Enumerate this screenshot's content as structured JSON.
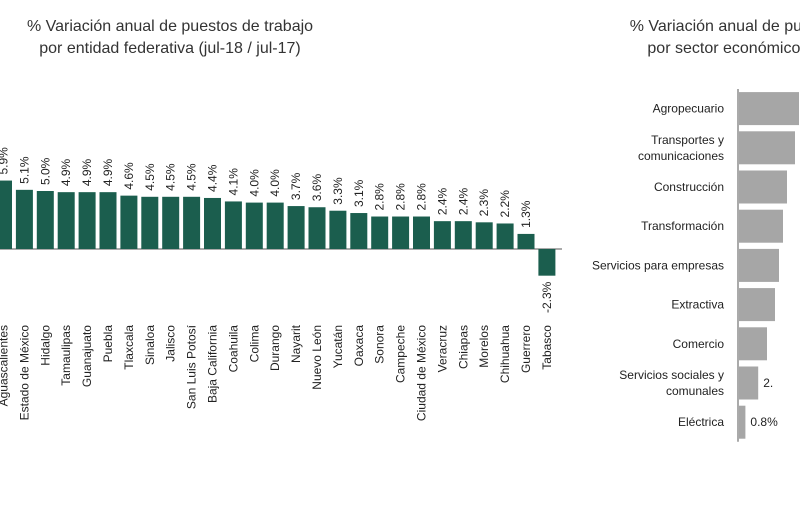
{
  "charts": {
    "left": {
      "title_line1": "% Variación anual de puestos de trabajo",
      "title_line2": "por entidad federativa (jul-18 / jul-17)"
    },
    "right": {
      "title_line1": "% Variación anual de puestos",
      "title_line2": "por sector económico (ju"
    }
  },
  "colors": {
    "state_bars": "#1b5e4e",
    "sector_bars": "#a6a6a6",
    "baseline": "#555555"
  },
  "chart_data": [
    {
      "type": "bar",
      "orientation": "vertical",
      "title": "% Variación anual de puestos de trabajo por entidad federativa (jul-18 / jul-17)",
      "categories": [
        "Aguascalientes",
        "Estado de México",
        "Hidalgo",
        "Tamaulipas",
        "Guanajuato",
        "Puebla",
        "Tlaxcala",
        "Sinaloa",
        "Jalisco",
        "San Luis Potosí",
        "Baja California",
        "Coahuila",
        "Colima",
        "Durango",
        "Nayarit",
        "Nuevo León",
        "Yucatán",
        "Oaxaca",
        "Sonora",
        "Campeche",
        "Ciudad de México",
        "Veracruz",
        "Chiapas",
        "Morelos",
        "Chihuahua",
        "Guerrero",
        "Tabasco"
      ],
      "values": [
        5.9,
        5.1,
        5.0,
        4.9,
        4.9,
        4.9,
        4.6,
        4.5,
        4.5,
        4.5,
        4.4,
        4.1,
        4.0,
        4.0,
        3.7,
        3.6,
        3.3,
        3.1,
        2.8,
        2.8,
        2.8,
        2.4,
        2.4,
        2.3,
        2.2,
        1.3,
        -2.3
      ],
      "labels": [
        "5.9%",
        "5.1%",
        "5.0%",
        "4.9%",
        "4.9%",
        "4.9%",
        "4.6%",
        "4.5%",
        "4.5%",
        "4.5%",
        "4.4%",
        "4.1%",
        "4.0%",
        "4.0%",
        "3.7%",
        "3.6%",
        "3.3%",
        "3.1%",
        "2.8%",
        "2.8%",
        "2.8%",
        "2.4%",
        "2.4%",
        "2.3%",
        "2.2%",
        "1.3%",
        "-2.3%"
      ]
    },
    {
      "type": "bar",
      "orientation": "horizontal",
      "title": "% Variación anual de puestos por sector económico (ju",
      "categories": [
        "Agropecuario",
        [
          "Transportes y",
          "comunicaciones"
        ],
        "Construcción",
        "Transformación",
        "Servicios para empresas",
        "Extractiva",
        "Comercio",
        [
          "Servicios sociales y",
          "comunales"
        ],
        "Eléctrica"
      ],
      "values": [
        7.5,
        7.0,
        6.0,
        5.5,
        5.0,
        4.5,
        3.5,
        2.4,
        0.8
      ],
      "labels": [
        "",
        "",
        "",
        "",
        "",
        "",
        "",
        "2.",
        "0.8%"
      ]
    }
  ]
}
